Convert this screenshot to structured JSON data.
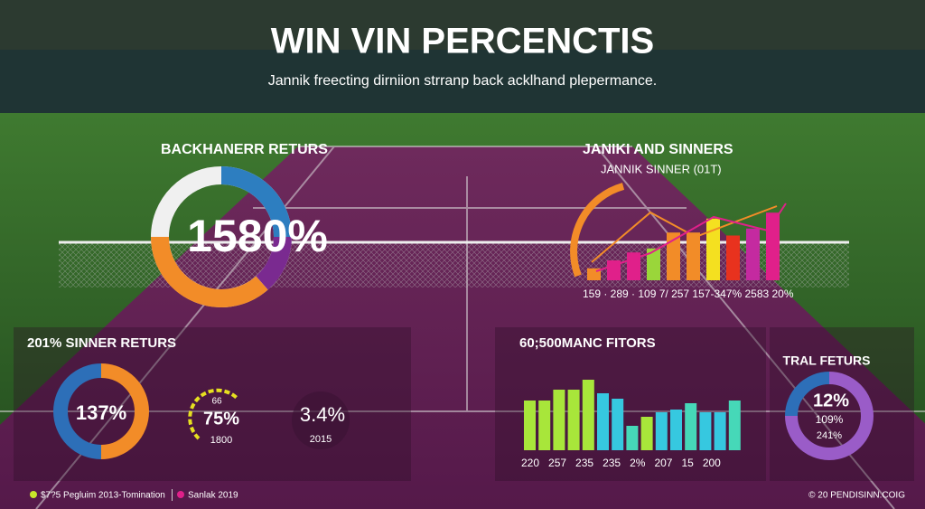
{
  "header": {
    "title": "WIN VIN PERCENCTIS",
    "subtitle": "Jannik freecting dirniion strranp back acklhand plepermance."
  },
  "backhand": {
    "title": "BACKHANERR RETURS",
    "center_label": "1580%"
  },
  "sinners": {
    "title": "JANIKI AND SINNERS",
    "subtitle": "JANNIK SINNER (01T)",
    "bar_values": [
      12,
      20,
      28,
      32,
      48,
      48,
      62,
      45,
      52,
      68
    ],
    "bar_colors": [
      "#f28c28",
      "#e0208a",
      "#e0208a",
      "#9ad63a",
      "#f28c28",
      "#f28c28",
      "#f4e020",
      "#e8321e",
      "#c42aa0",
      "#e0208a"
    ],
    "axis_labels": "159 · 289 · 109 7/ 257 157-347% 2583 20%"
  },
  "returns": {
    "title": "201% SINNER RETURS",
    "donut_label": "137%",
    "gauge_label": "75%",
    "gauge_top": "66",
    "gauge_bottom": "1800",
    "stat_label": "3.4%",
    "stat_sub": "2015"
  },
  "factors": {
    "title": "60;500MANC FITORS",
    "bar_values": [
      55,
      55,
      67,
      67,
      78,
      63,
      57,
      27,
      37,
      42,
      45,
      52,
      42,
      42,
      55
    ],
    "bar_colors": [
      "#a8e63a",
      "#a8e63a",
      "#a8e63a",
      "#a8e63a",
      "#a8e63a",
      "#36c8e0",
      "#36c8e0",
      "#46d8b8",
      "#a8e63a",
      "#36c8e0",
      "#36c8e0",
      "#46d8b8",
      "#36c8e0",
      "#36c8e0",
      "#46d8b8"
    ],
    "axis_labels": "220   257   235   235   2%   207   15   200"
  },
  "features": {
    "title": "TRAL FETURS",
    "center_label": "12%",
    "line2": "109%",
    "line3": "241%"
  },
  "footer": {
    "left": "$7?5 Pegluim 2013-Tomination",
    "right_left": "Sanlak 2019",
    "right": "© 20 PENDISINN.COIG"
  }
}
